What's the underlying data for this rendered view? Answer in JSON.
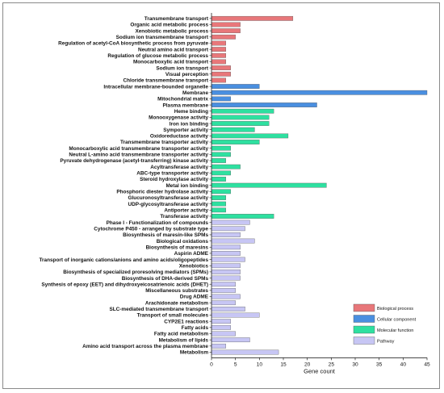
{
  "chart_data": {
    "type": "bar",
    "orientation": "horizontal",
    "xlabel": "Gene count",
    "ylabel": "",
    "xlim": [
      0,
      45
    ],
    "xticks": [
      0,
      5,
      10,
      15,
      20,
      25,
      30,
      35,
      40,
      45
    ],
    "grid": false,
    "legend_position": "bottom-right",
    "series": [
      {
        "name": "Biological process",
        "color": "#e8777a"
      },
      {
        "name": "Cellular component",
        "color": "#4a8fe0"
      },
      {
        "name": "Molecular function",
        "color": "#2ee0a0"
      },
      {
        "name": "Pathway",
        "color": "#c7c6f4"
      }
    ],
    "categories": [
      {
        "label": "Transmembrane transport",
        "value": 17,
        "series": 0
      },
      {
        "label": "Organic acid metabolic process",
        "value": 6,
        "series": 0
      },
      {
        "label": "Xenobiotic metabolic process",
        "value": 6,
        "series": 0
      },
      {
        "label": "Sodium ion transmembrane transport",
        "value": 5,
        "series": 0
      },
      {
        "label": "Regulation of acetyl-CoA biosynthetic process from pyruvate",
        "value": 3,
        "series": 0
      },
      {
        "label": "Neutral amino acid transport",
        "value": 3,
        "series": 0
      },
      {
        "label": "Regulation of glucose metabolic process",
        "value": 3,
        "series": 0
      },
      {
        "label": "Monocarboxylic acid transport",
        "value": 3,
        "series": 0
      },
      {
        "label": "Sodium ion transport",
        "value": 4,
        "series": 0
      },
      {
        "label": "Visual perception",
        "value": 4,
        "series": 0
      },
      {
        "label": "Chloride transmembrane transport",
        "value": 3,
        "series": 0
      },
      {
        "label": "Intracellular membrane-bounded organelle",
        "value": 10,
        "series": 1
      },
      {
        "label": "Membrane",
        "value": 45,
        "series": 1
      },
      {
        "label": "Mitochondrial matrix",
        "value": 4,
        "series": 1
      },
      {
        "label": "Plasma membrane",
        "value": 22,
        "series": 1
      },
      {
        "label": "Heme binding",
        "value": 13,
        "series": 2
      },
      {
        "label": "Monooxygenase activity",
        "value": 12,
        "series": 2
      },
      {
        "label": "Iron ion binding",
        "value": 12,
        "series": 2
      },
      {
        "label": "Symporter activity",
        "value": 9,
        "series": 2
      },
      {
        "label": "Oxidoreductase activity",
        "value": 16,
        "series": 2
      },
      {
        "label": "Transmembrane transporter activity",
        "value": 10,
        "series": 2
      },
      {
        "label": "Monocarboxylic acid transmembrane transporter activity",
        "value": 4,
        "series": 2
      },
      {
        "label": "Neutral L-amino acid transmembrane transporter activity",
        "value": 4,
        "series": 2
      },
      {
        "label": "Pyruvate dehydrogenase (acetyl-transferring) kinase activity",
        "value": 3,
        "series": 2
      },
      {
        "label": "Acyltransferase activity",
        "value": 6,
        "series": 2
      },
      {
        "label": "ABC-type transporter activity",
        "value": 4,
        "series": 2
      },
      {
        "label": "Steroid hydroxylase activity",
        "value": 3,
        "series": 2
      },
      {
        "label": "Metal ion binding",
        "value": 24,
        "series": 2
      },
      {
        "label": "Phosphoric diester hydrolase activity",
        "value": 4,
        "series": 2
      },
      {
        "label": "Glucuronosyltransferase activity",
        "value": 3,
        "series": 2
      },
      {
        "label": "UDP-glycosyltransferase activity",
        "value": 3,
        "series": 2
      },
      {
        "label": "Antiporter activity",
        "value": 3,
        "series": 2
      },
      {
        "label": "Transferase activity",
        "value": 13,
        "series": 2
      },
      {
        "label": "Phase I - Functionalization of compounds",
        "value": 8,
        "series": 3
      },
      {
        "label": "Cytochrome P450 - arranged by substrate type",
        "value": 7,
        "series": 3
      },
      {
        "label": "Biosynthesis of maresin-like SPMs",
        "value": 6,
        "series": 3
      },
      {
        "label": "Biological oxidations",
        "value": 9,
        "series": 3
      },
      {
        "label": "Biosynthesis of maresins",
        "value": 6,
        "series": 3
      },
      {
        "label": "Aspirin ADME",
        "value": 6,
        "series": 3
      },
      {
        "label": "Transport of inorganic cations/anions and amino acids/oligopeptides",
        "value": 7,
        "series": 3
      },
      {
        "label": "Xenobiotics",
        "value": 6,
        "series": 3
      },
      {
        "label": "Biosynthesis of specialized proresolving mediators (SPMs)",
        "value": 6,
        "series": 3
      },
      {
        "label": "Biosynthesis of DHA-derived SPMs",
        "value": 6,
        "series": 3
      },
      {
        "label": "Synthesis of epoxy (EET) and dihydroxyeicosatrienoic acids (DHET)",
        "value": 5,
        "series": 3
      },
      {
        "label": "Miscellaneous substrates",
        "value": 5,
        "series": 3
      },
      {
        "label": "Drug ADME",
        "value": 6,
        "series": 3
      },
      {
        "label": "Arachidonate metabolism",
        "value": 5,
        "series": 3
      },
      {
        "label": "SLC-mediated transmembrane transport",
        "value": 7,
        "series": 3
      },
      {
        "label": "Transport of small molecules",
        "value": 10,
        "series": 3
      },
      {
        "label": "CYP2E1 reactions",
        "value": 4,
        "series": 3
      },
      {
        "label": "Fatty acids",
        "value": 4,
        "series": 3
      },
      {
        "label": "Fatty acid metabolism",
        "value": 5,
        "series": 3
      },
      {
        "label": "Metabolism of lipids",
        "value": 8,
        "series": 3
      },
      {
        "label": "Amino acid transport across the plasma membrane",
        "value": 3,
        "series": 3
      },
      {
        "label": "Metabolism",
        "value": 14,
        "series": 3
      }
    ]
  }
}
